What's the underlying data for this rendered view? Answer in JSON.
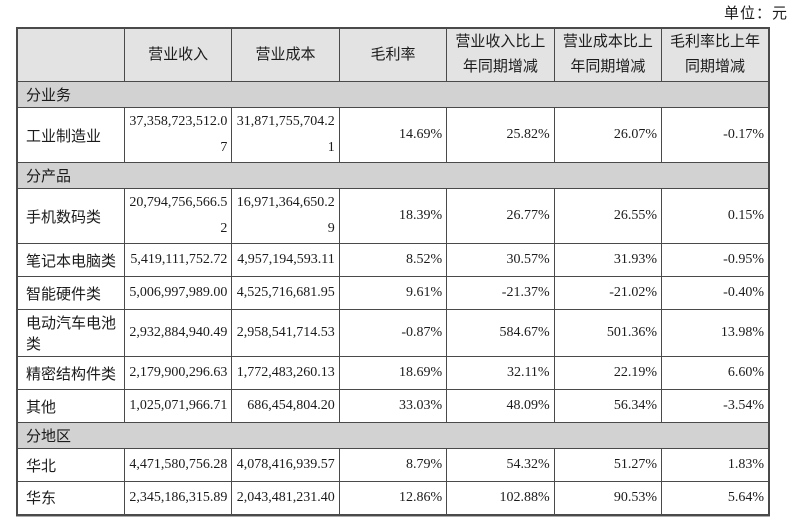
{
  "unit_label": "单位：元",
  "colors": {
    "header_bg": "#e3e3e3",
    "section_bg": "#d2d2d2",
    "border": "#4a4a4a",
    "text": "#1b1b1b",
    "page_bg": "#ffffff"
  },
  "table": {
    "columns": [
      "",
      "营业收入",
      "营业成本",
      "毛利率",
      "营业收入比上年同期增减",
      "营业成本比上年同期增减",
      "毛利率比上年同期增减"
    ],
    "sections": [
      {
        "label": "分业务",
        "rows": [
          {
            "label": "工业制造业",
            "values": [
              "37,358,723,512.07",
              "31,871,755,704.21",
              "14.69%",
              "25.82%",
              "26.07%",
              "-0.17%"
            ]
          }
        ]
      },
      {
        "label": "分产品",
        "rows": [
          {
            "label": "手机数码类",
            "values": [
              "20,794,756,566.52",
              "16,971,364,650.29",
              "18.39%",
              "26.77%",
              "26.55%",
              "0.15%"
            ]
          },
          {
            "label": "笔记本电脑类",
            "values": [
              "5,419,111,752.72",
              "4,957,194,593.11",
              "8.52%",
              "30.57%",
              "31.93%",
              "-0.95%"
            ]
          },
          {
            "label": "智能硬件类",
            "values": [
              "5,006,997,989.00",
              "4,525,716,681.95",
              "9.61%",
              "-21.37%",
              "-21.02%",
              "-0.40%"
            ]
          },
          {
            "label": "电动汽车电池类",
            "values": [
              "2,932,884,940.49",
              "2,958,541,714.53",
              "-0.87%",
              "584.67%",
              "501.36%",
              "13.98%"
            ]
          },
          {
            "label": "精密结构件类",
            "values": [
              "2,179,900,296.63",
              "1,772,483,260.13",
              "18.69%",
              "32.11%",
              "22.19%",
              "6.60%"
            ]
          },
          {
            "label": "其他",
            "values": [
              "1,025,071,966.71",
              "686,454,804.20",
              "33.03%",
              "48.09%",
              "56.34%",
              "-3.54%"
            ]
          }
        ]
      },
      {
        "label": "分地区",
        "rows": [
          {
            "label": "华北",
            "values": [
              "4,471,580,756.28",
              "4,078,416,939.57",
              "8.79%",
              "54.32%",
              "51.27%",
              "1.83%"
            ]
          },
          {
            "label": "华东",
            "values": [
              "2,345,186,315.89",
              "2,043,481,231.40",
              "12.86%",
              "102.88%",
              "90.53%",
              "5.64%"
            ]
          }
        ]
      }
    ]
  }
}
